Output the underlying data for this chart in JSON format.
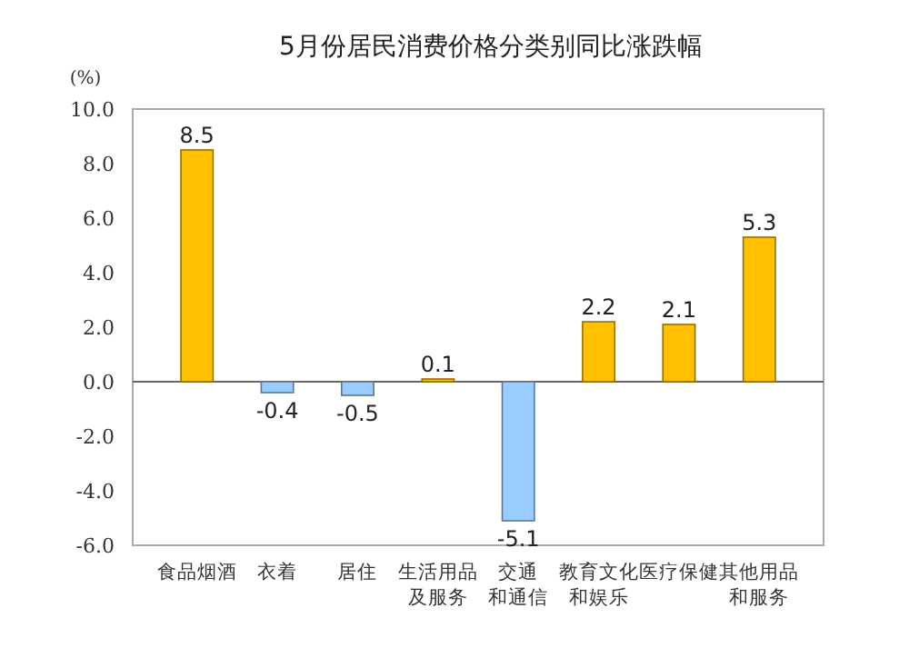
{
  "chart_data": {
    "type": "bar",
    "title": "5月份居民消费价格分类别同比涨跌幅",
    "ylabel": "(%)",
    "categories": [
      "食品烟酒",
      "衣着",
      "居住",
      "生活用品及服务",
      "交通和通信",
      "教育文化和娱乐",
      "医疗保健",
      "其他用品和服务"
    ],
    "values": [
      8.5,
      -0.4,
      -0.5,
      0.1,
      -5.1,
      2.2,
      2.1,
      5.3
    ],
    "colors": [
      "#ffc000",
      "#99ccff",
      "#99ccff",
      "#ffc000",
      "#99ccff",
      "#ffc000",
      "#ffc000",
      "#ffc000"
    ],
    "ylim": [
      -6,
      10
    ],
    "yticks": [
      {
        "value": -6,
        "label": "-6.0"
      },
      {
        "value": -4,
        "label": "-4.0"
      },
      {
        "value": -2,
        "label": "-2.0"
      },
      {
        "value": 0,
        "label": "0.0"
      },
      {
        "value": 2,
        "label": "2.0"
      },
      {
        "value": 4,
        "label": "4.0"
      },
      {
        "value": 6,
        "label": "6.0"
      },
      {
        "value": 8,
        "label": "8.0"
      },
      {
        "value": 10,
        "label": "10.0"
      }
    ],
    "data_labels": true
  }
}
